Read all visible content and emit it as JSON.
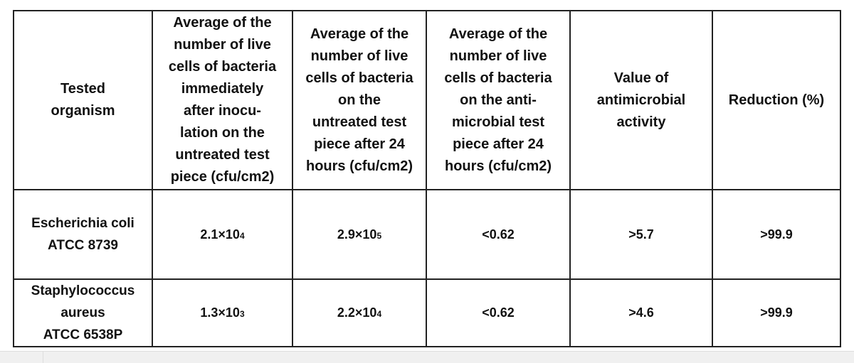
{
  "table": {
    "headers": [
      "Tested\norganism",
      "Average of the\nnumber of live\ncells of bacteria\nimmediately\nafter inocu-\nlation on the\nuntreated test\npiece (cfu/cm2)",
      "Average of the\nnumber of live\ncells of bacteria\non the\nuntreated test\npiece after 24\nhours (cfu/cm2)",
      "Average of the\nnumber of live\ncells of bacteria\non the anti-\nmicrobial test\npiece after 24\nhours (cfu/cm2)",
      "Value of\nantimicrobial\nactivity",
      "Reduction (%)"
    ],
    "rows": [
      {
        "organism": "Escherichia coli\nATCC 8739",
        "initial": {
          "base": "2.1×10",
          "exp": "4"
        },
        "untreated": {
          "base": "2.9×10",
          "exp": "5"
        },
        "treated": "<0.62",
        "activity": ">5.7",
        "reduction": ">99.9"
      },
      {
        "organism": "Staphylococcus\naureus\nATCC 6538P",
        "initial": {
          "base": "1.3×10",
          "exp": "3"
        },
        "untreated": {
          "base": "2.2×10",
          "exp": "4"
        },
        "treated": "<0.62",
        "activity": ">4.6",
        "reduction": ">99.9"
      }
    ]
  }
}
